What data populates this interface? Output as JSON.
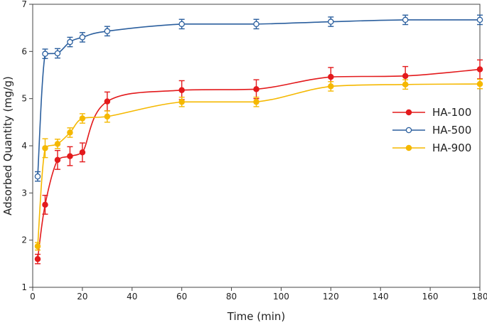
{
  "chart_data": {
    "type": "line",
    "title": "",
    "xlabel": "Time (min)",
    "ylabel": "Adsorbed Quantity (mg/g)",
    "xlim": [
      0,
      180
    ],
    "ylim": [
      1,
      7
    ],
    "xticks": [
      0,
      20,
      40,
      60,
      80,
      100,
      120,
      140,
      160,
      180
    ],
    "yticks": [
      1,
      2,
      3,
      4,
      5,
      6,
      7
    ],
    "grid": false,
    "legend_position": "right-middle",
    "series": [
      {
        "name": "HA-100",
        "color": "#e31a1c",
        "marker": "filled-circle",
        "x": [
          2,
          5,
          10,
          15,
          20,
          30,
          60,
          90,
          120,
          150,
          180
        ],
        "y": [
          1.6,
          2.75,
          3.7,
          3.78,
          3.86,
          4.94,
          5.18,
          5.2,
          5.46,
          5.48,
          5.62
        ],
        "err": [
          0.1,
          0.2,
          0.2,
          0.2,
          0.2,
          0.2,
          0.2,
          0.2,
          0.2,
          0.2,
          0.2
        ]
      },
      {
        "name": "HA-500",
        "color": "#2b5f9e",
        "marker": "open-circle",
        "x": [
          2,
          5,
          10,
          15,
          20,
          30,
          60,
          90,
          120,
          150,
          180
        ],
        "y": [
          3.35,
          5.95,
          5.96,
          6.2,
          6.3,
          6.43,
          6.58,
          6.58,
          6.63,
          6.67,
          6.67
        ],
        "err": [
          0.1,
          0.1,
          0.1,
          0.1,
          0.1,
          0.1,
          0.1,
          0.1,
          0.1,
          0.1,
          0.1
        ]
      },
      {
        "name": "HA-900",
        "color": "#f5b800",
        "marker": "filled-circle",
        "x": [
          2,
          5,
          10,
          15,
          20,
          30,
          60,
          90,
          120,
          150,
          180
        ],
        "y": [
          1.87,
          3.95,
          4.04,
          4.28,
          4.58,
          4.62,
          4.93,
          4.93,
          5.26,
          5.3,
          5.31
        ],
        "err": [
          0.08,
          0.2,
          0.1,
          0.1,
          0.1,
          0.12,
          0.1,
          0.1,
          0.1,
          0.1,
          0.1
        ]
      }
    ]
  }
}
